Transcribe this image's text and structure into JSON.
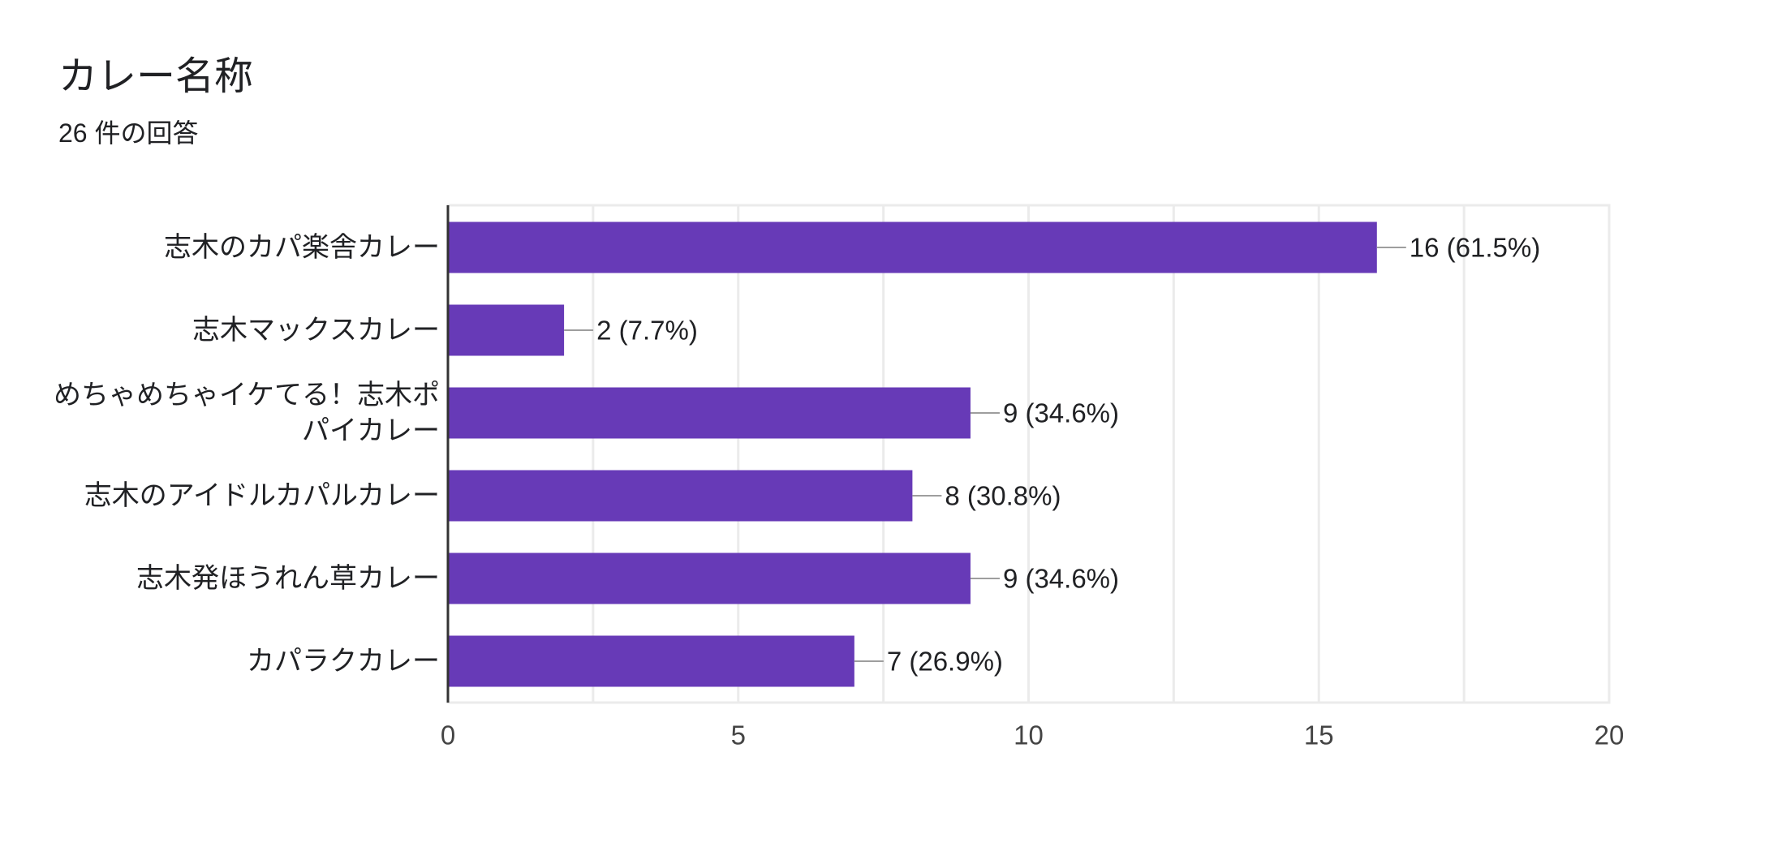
{
  "header": {
    "title": "カレー名称",
    "response_count": "26 件の回答"
  },
  "colors": {
    "bar": "#673ab7",
    "grid": "#ebebeb",
    "axis": "#333333",
    "leader": "#9e9e9e",
    "text": "#202124",
    "tick_text": "#444444"
  },
  "chart_data": {
    "type": "bar",
    "orientation": "horizontal",
    "title": "カレー名称",
    "subtitle": "26 件の回答",
    "xlabel": "",
    "ylabel": "",
    "xlim": [
      0,
      20
    ],
    "x_ticks": [
      0,
      5,
      10,
      15,
      20
    ],
    "grid": true,
    "categories": [
      "志木のカパ楽舎カレー",
      "志木マックスカレー",
      "めちゃめちゃイケてる！志木ポパイカレー",
      "志木のアイドルカパルカレー",
      "志木発ほうれん草カレー",
      "カパラクカレー"
    ],
    "category_label_lines": [
      [
        "志木のカパ楽舎カレー"
      ],
      [
        "志木マックスカレー"
      ],
      [
        "めちゃめちゃイケてる！志木ポ",
        "パイカレー"
      ],
      [
        "志木のアイドルカパルカレー"
      ],
      [
        "志木発ほうれん草カレー"
      ],
      [
        "カパラクカレー"
      ]
    ],
    "values": [
      16,
      2,
      9,
      8,
      9,
      7
    ],
    "data_labels": [
      "16 (61.5%)",
      "2 (7.7%)",
      "9 (34.6%)",
      "8 (30.8%)",
      "9 (34.6%)",
      "7 (26.9%)"
    ]
  }
}
